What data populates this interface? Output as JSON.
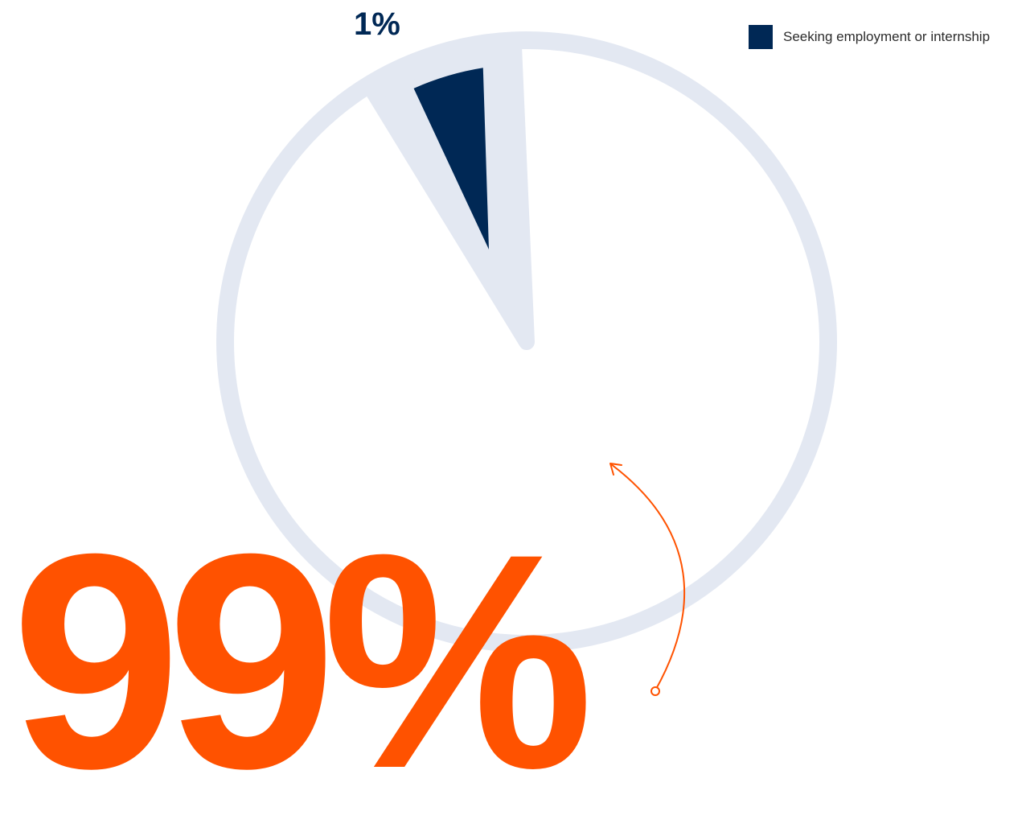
{
  "chart_data": {
    "type": "pie",
    "slices": [
      {
        "label": "Seeking employment or internship",
        "value": 1,
        "display": "1%",
        "color": "#002855"
      },
      {
        "value": 99,
        "display": "99%",
        "color": "#E3E8F2"
      }
    ],
    "legend": {
      "position": "top-right",
      "entries": [
        "Seeking employment or internship"
      ]
    }
  },
  "colors": {
    "navy": "#002855",
    "light_ring": "#E3E8F2",
    "accent_orange": "#FF5200"
  },
  "icons": {
    "arrow": "curved-arrow-icon"
  }
}
